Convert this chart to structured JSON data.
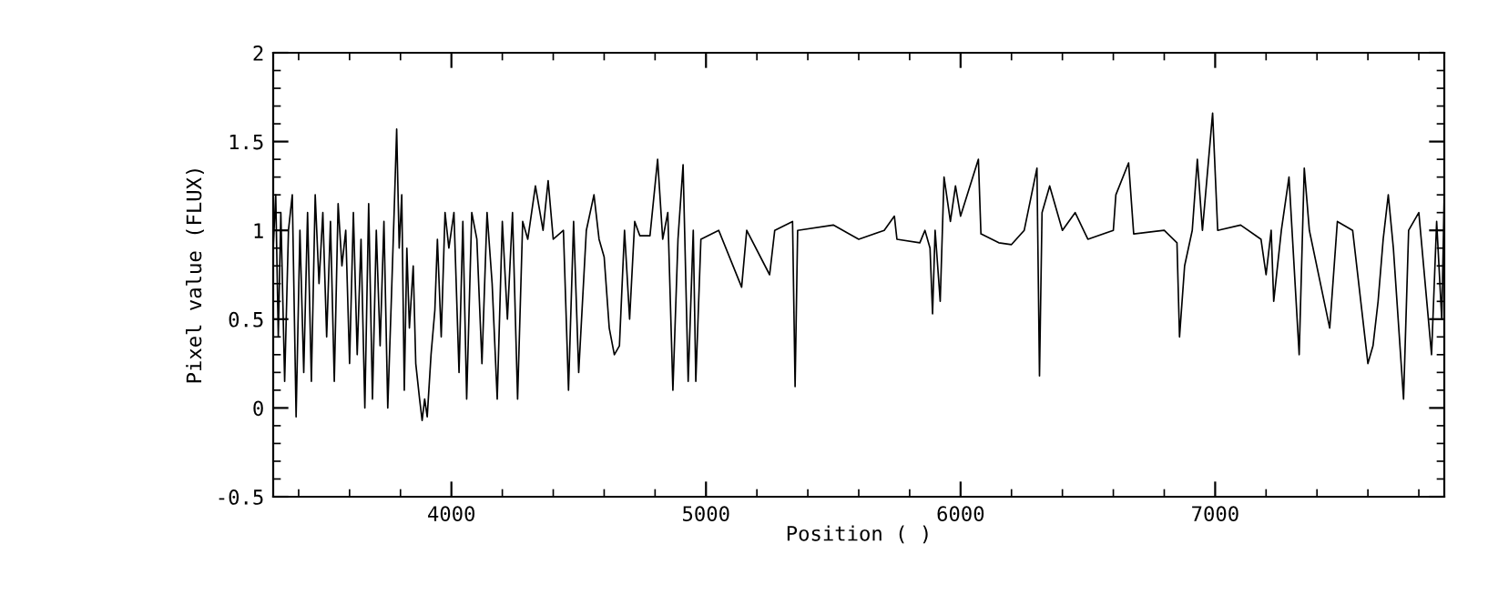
{
  "chart_data": {
    "type": "line",
    "xlabel": "Position ( )",
    "ylabel": "Pixel value (FLUX)",
    "xlim": [
      3300,
      7900
    ],
    "ylim": [
      -0.5,
      2
    ],
    "xticks": [
      4000,
      5000,
      6000,
      7000
    ],
    "yticks": [
      {
        "value": -0.5,
        "label": "-0.5"
      },
      0,
      0.5,
      1,
      1.5,
      2
    ],
    "grid": false,
    "legend": false,
    "marker": "none",
    "line_style": "solid",
    "series": [
      {
        "color": "#000000",
        "x": [
          3300,
          3310,
          3320,
          3330,
          3345,
          3360,
          3375,
          3390,
          3405,
          3420,
          3435,
          3450,
          3465,
          3480,
          3495,
          3510,
          3525,
          3540,
          3555,
          3570,
          3585,
          3600,
          3615,
          3630,
          3645,
          3660,
          3675,
          3690,
          3705,
          3720,
          3735,
          3750,
          3765,
          3775,
          3785,
          3795,
          3805,
          3815,
          3825,
          3835,
          3850,
          3860,
          3875,
          3885,
          3895,
          3905,
          3920,
          3935,
          3945,
          3960,
          3975,
          3990,
          4010,
          4030,
          4045,
          4060,
          4080,
          4100,
          4120,
          4140,
          4160,
          4180,
          4200,
          4220,
          4240,
          4260,
          4280,
          4300,
          4330,
          4360,
          4380,
          4400,
          4440,
          4460,
          4480,
          4500,
          4530,
          4560,
          4580,
          4600,
          4620,
          4640,
          4660,
          4680,
          4700,
          4720,
          4740,
          4780,
          4810,
          4830,
          4850,
          4870,
          4890,
          4910,
          4930,
          4950,
          4960,
          4980,
          5050,
          5140,
          5160,
          5250,
          5270,
          5340,
          5350,
          5360,
          5500,
          5600,
          5700,
          5740,
          5750,
          5840,
          5860,
          5880,
          5890,
          5900,
          5920,
          5935,
          5960,
          5980,
          6000,
          6070,
          6080,
          6150,
          6200,
          6250,
          6300,
          6310,
          6320,
          6350,
          6400,
          6450,
          6500,
          6600,
          6610,
          6660,
          6680,
          6800,
          6850,
          6860,
          6880,
          6910,
          6930,
          6950,
          6990,
          7010,
          7100,
          7180,
          7200,
          7220,
          7230,
          7260,
          7290,
          7330,
          7350,
          7370,
          7450,
          7480,
          7540,
          7600,
          7620,
          7640,
          7660,
          7680,
          7700,
          7740,
          7760,
          7800,
          7850,
          7870,
          7890,
          7900
        ],
        "values": [
          0.9,
          1.2,
          0.4,
          1.1,
          0.15,
          1.0,
          1.2,
          -0.05,
          1.0,
          0.2,
          1.1,
          0.15,
          1.2,
          0.7,
          1.1,
          0.4,
          1.05,
          0.15,
          1.15,
          0.8,
          1.0,
          0.25,
          1.1,
          0.3,
          0.95,
          0.0,
          1.15,
          0.05,
          1.0,
          0.35,
          1.05,
          0.0,
          0.65,
          1.1,
          1.57,
          0.9,
          1.2,
          0.1,
          0.9,
          0.45,
          0.8,
          0.25,
          0.05,
          -0.07,
          0.05,
          -0.05,
          0.3,
          0.55,
          0.95,
          0.4,
          1.1,
          0.9,
          1.1,
          0.2,
          1.05,
          0.05,
          1.1,
          0.95,
          0.25,
          1.1,
          0.7,
          0.05,
          1.05,
          0.5,
          1.1,
          0.05,
          1.05,
          0.95,
          1.25,
          1.0,
          1.28,
          0.95,
          1.0,
          0.1,
          1.05,
          0.2,
          1.0,
          1.2,
          0.95,
          0.85,
          0.45,
          0.3,
          0.35,
          1.0,
          0.5,
          1.05,
          0.97,
          0.97,
          1.4,
          0.95,
          1.1,
          0.1,
          0.95,
          1.37,
          0.15,
          1.0,
          0.15,
          0.95,
          1.0,
          0.68,
          1.0,
          0.75,
          1.0,
          1.05,
          0.12,
          1.0,
          1.03,
          0.95,
          1.0,
          1.08,
          0.95,
          0.93,
          1.0,
          0.9,
          0.53,
          1.0,
          0.6,
          1.3,
          1.05,
          1.25,
          1.08,
          1.4,
          0.98,
          0.93,
          0.92,
          1.0,
          1.35,
          0.18,
          1.1,
          1.25,
          1.0,
          1.1,
          0.95,
          1.0,
          1.2,
          1.38,
          0.98,
          1.0,
          0.93,
          0.4,
          0.8,
          1.0,
          1.4,
          1.0,
          1.66,
          1.0,
          1.03,
          0.95,
          0.75,
          1.0,
          0.6,
          1.0,
          1.3,
          0.3,
          1.35,
          1.0,
          0.45,
          1.05,
          1.0,
          0.25,
          0.35,
          0.6,
          0.95,
          1.2,
          0.9,
          0.05,
          1.0,
          1.1,
          0.3,
          1.05,
          0.5,
          1.2
        ]
      }
    ]
  }
}
